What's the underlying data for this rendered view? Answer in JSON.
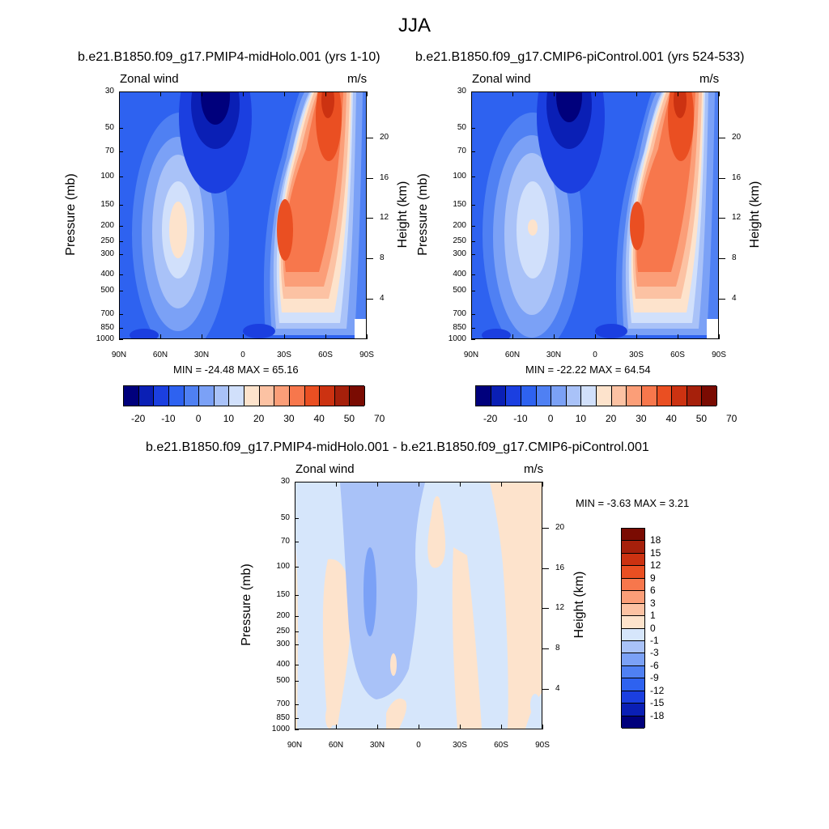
{
  "figure": {
    "title": "JJA"
  },
  "panels": [
    {
      "title": "b.e21.B1850.f09_g17.PMIP4-midHolo.001 (yrs 1-10)",
      "variable": "Zonal wind",
      "units": "m/s",
      "minmax": "MIN = -24.48  MAX =  65.16"
    },
    {
      "title": "b.e21.B1850.f09_g17.CMIP6-piControl.001 (yrs 524-533)",
      "variable": "Zonal wind",
      "units": "m/s",
      "minmax": "MIN = -22.22  MAX =  64.54"
    },
    {
      "title": "b.e21.B1850.f09_g17.PMIP4-midHolo.001 - b.e21.B1850.f09_g17.CMIP6-piControl.001",
      "variable": "Zonal wind",
      "units": "m/s",
      "minmax": "MIN =  -3.63  MAX =   3.21"
    }
  ],
  "chart_data": [
    {
      "type": "heatmap",
      "title": "b.e21.B1850.f09_g17.PMIP4-midHolo.001 (yrs 1-10)",
      "xlabel": "",
      "ylabel": "Pressure (mb)",
      "ylabel_right": "Height (km)",
      "x_ticks": [
        "90N",
        "60N",
        "30N",
        "0",
        "30S",
        "60S",
        "90S"
      ],
      "y_ticks": [
        "30",
        "50",
        "70",
        "100",
        "150",
        "200",
        "250",
        "300",
        "400",
        "500",
        "700",
        "850",
        "1000"
      ],
      "y_ticks_right": [
        "20",
        "16",
        "12",
        "8",
        "4"
      ],
      "colorbar_labels": [
        "-20",
        "-10",
        "0",
        "10",
        "20",
        "30",
        "40",
        "50",
        "70"
      ],
      "colorbar_colors": [
        "#00007c",
        "#0a1fb5",
        "#1b3fe0",
        "#2e62f0",
        "#4f80f3",
        "#7ba1f6",
        "#a9c2f8",
        "#d1e0fb",
        "#fde3cc",
        "#fcc2a3",
        "#fb9e78",
        "#f7774c",
        "#ea4f22",
        "#cc3211",
        "#a6200b",
        "#7a0b02"
      ],
      "min": -24.48,
      "max": 65.16
    },
    {
      "type": "heatmap",
      "title": "b.e21.B1850.f09_g17.CMIP6-piControl.001 (yrs 524-533)",
      "xlabel": "",
      "ylabel": "Pressure (mb)",
      "ylabel_right": "Height (km)",
      "x_ticks": [
        "90N",
        "60N",
        "30N",
        "0",
        "30S",
        "60S",
        "90S"
      ],
      "y_ticks": [
        "30",
        "50",
        "70",
        "100",
        "150",
        "200",
        "250",
        "300",
        "400",
        "500",
        "700",
        "850",
        "1000"
      ],
      "y_ticks_right": [
        "20",
        "16",
        "12",
        "8",
        "4"
      ],
      "colorbar_labels": [
        "-20",
        "-10",
        "0",
        "10",
        "20",
        "30",
        "40",
        "50",
        "70"
      ],
      "colorbar_colors": [
        "#00007c",
        "#0a1fb5",
        "#1b3fe0",
        "#2e62f0",
        "#4f80f3",
        "#7ba1f6",
        "#a9c2f8",
        "#d1e0fb",
        "#fde3cc",
        "#fcc2a3",
        "#fb9e78",
        "#f7774c",
        "#ea4f22",
        "#cc3211",
        "#a6200b",
        "#7a0b02"
      ],
      "min": -22.22,
      "max": 64.54
    },
    {
      "type": "heatmap",
      "title": "b.e21.B1850.f09_g17.PMIP4-midHolo.001 - b.e21.B1850.f09_g17.CMIP6-piControl.001",
      "xlabel": "",
      "ylabel": "Pressure (mb)",
      "ylabel_right": "Height (km)",
      "x_ticks": [
        "90N",
        "60N",
        "30N",
        "0",
        "30S",
        "60S",
        "90S"
      ],
      "y_ticks": [
        "30",
        "50",
        "70",
        "100",
        "150",
        "200",
        "250",
        "300",
        "400",
        "500",
        "700",
        "850",
        "1000"
      ],
      "y_ticks_right": [
        "20",
        "16",
        "12",
        "8",
        "4"
      ],
      "colorbar_labels": [
        "18",
        "15",
        "12",
        "9",
        "6",
        "3",
        "1",
        "0",
        "-1",
        "-3",
        "-6",
        "-9",
        "-12",
        "-15",
        "-18"
      ],
      "colorbar_colors": [
        "#7a0b02",
        "#a6200b",
        "#cc3211",
        "#ea4f22",
        "#f7774c",
        "#fb9e78",
        "#fcc2a3",
        "#fde3cc",
        "#d6e6fb",
        "#a9c2f8",
        "#7ba1f6",
        "#4f80f3",
        "#2e62f0",
        "#1b3fe0",
        "#0a1fb5",
        "#00007c"
      ],
      "min": -3.63,
      "max": 3.21
    }
  ]
}
